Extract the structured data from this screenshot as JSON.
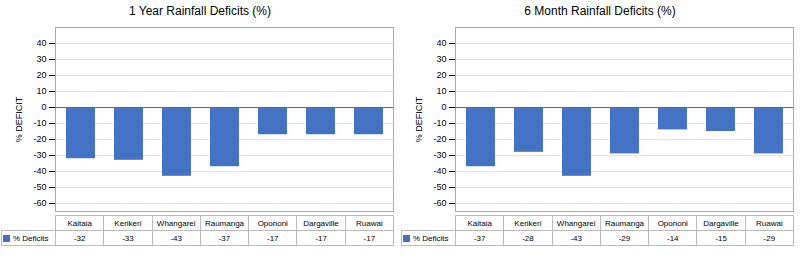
{
  "chart_data": [
    {
      "type": "bar",
      "title": "1 Year Rainfall Deficits (%)",
      "categories": [
        "Kaitaia",
        "Kerikeri",
        "Whangarei",
        "Raumanga",
        "Opononi",
        "Dargaville",
        "Ruawai"
      ],
      "series": [
        {
          "name": "% Deficits",
          "color": "#4472C4",
          "values": [
            -32,
            -33,
            -43,
            -37,
            -17,
            -17,
            -17
          ]
        }
      ],
      "ylabel": "% DEFICIT",
      "ylim": [
        -65,
        50
      ],
      "yticks": [
        40,
        30,
        20,
        10,
        0,
        -10,
        -20,
        -30,
        -40,
        -50,
        -60
      ],
      "grid": true,
      "legend": "lower left",
      "data_labels": true,
      "tick_labels": "y"
    },
    {
      "type": "bar",
      "title": "6 Month Rainfall Deficits (%)",
      "categories": [
        "Kaitaia",
        "Kerikeri",
        "Whangarei",
        "Raumanga",
        "Opononi",
        "Dargaville",
        "Ruawai"
      ],
      "series": [
        {
          "name": "% Deficits",
          "color": "#4472C4",
          "values": [
            -37,
            -28,
            -43,
            -29,
            -14,
            -15,
            -29
          ]
        }
      ],
      "ylabel": "% DEFICIT",
      "ylim": [
        -65,
        50
      ],
      "yticks": [
        40,
        30,
        20,
        10,
        0,
        -10,
        -20,
        -30,
        -40,
        -50,
        -60
      ],
      "grid": true,
      "legend": "lower left",
      "data_labels": true,
      "tick_labels": "y"
    }
  ]
}
